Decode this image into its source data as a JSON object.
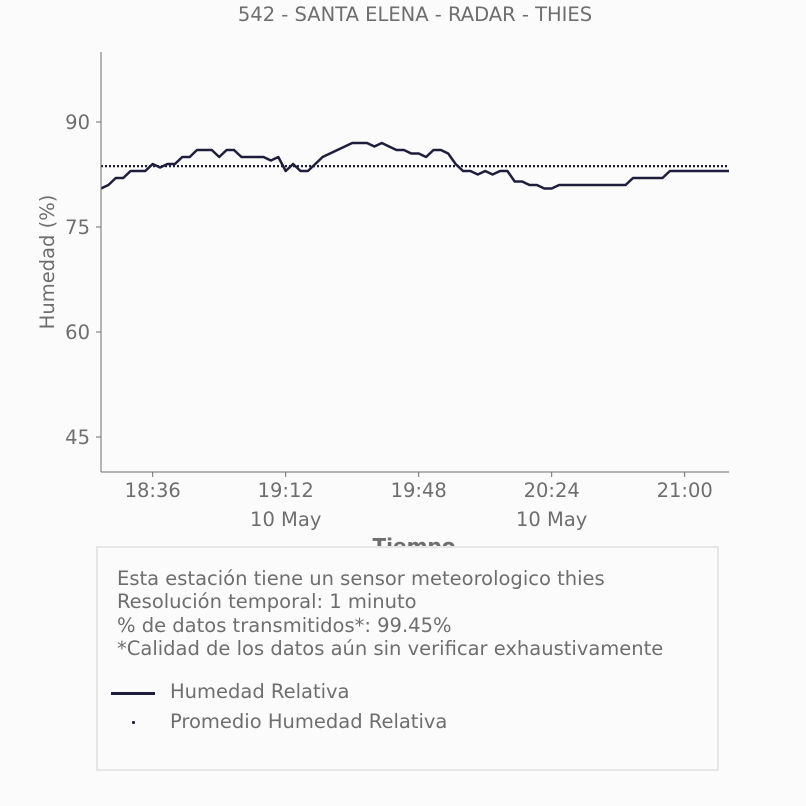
{
  "chart_data": {
    "type": "line",
    "title": "542 - SANTA ELENA - RADAR - THIES",
    "xlabel": "Tiempo",
    "ylabel": "Humedad (%)",
    "ylim": [
      40,
      100
    ],
    "yticks": [
      45,
      60,
      75,
      90
    ],
    "xlim": [
      "18:22",
      "21:12"
    ],
    "xticks": [
      {
        "time": "18:36",
        "label": "18:36",
        "sublabel": ""
      },
      {
        "time": "19:12",
        "label": "19:12",
        "sublabel": "10 May"
      },
      {
        "time": "19:48",
        "label": "19:48",
        "sublabel": ""
      },
      {
        "time": "20:24",
        "label": "20:24",
        "sublabel": "10 May"
      },
      {
        "time": "21:00",
        "label": "21:00",
        "sublabel": ""
      }
    ],
    "grid": false,
    "series": [
      {
        "name": "Humedad Relativa",
        "style": "solid",
        "color": "#1e1e3c",
        "x": [
          "18:22",
          "18:24",
          "18:26",
          "18:28",
          "18:30",
          "18:32",
          "18:34",
          "18:36",
          "18:38",
          "18:40",
          "18:42",
          "18:44",
          "18:46",
          "18:48",
          "18:50",
          "18:52",
          "18:54",
          "18:56",
          "18:58",
          "19:00",
          "19:02",
          "19:04",
          "19:06",
          "19:08",
          "19:10",
          "19:12",
          "19:14",
          "19:16",
          "19:18",
          "19:20",
          "19:22",
          "19:24",
          "19:26",
          "19:28",
          "19:30",
          "19:32",
          "19:34",
          "19:36",
          "19:38",
          "19:40",
          "19:42",
          "19:44",
          "19:46",
          "19:48",
          "19:50",
          "19:52",
          "19:54",
          "19:56",
          "19:58",
          "20:00",
          "20:02",
          "20:04",
          "20:06",
          "20:08",
          "20:10",
          "20:12",
          "20:14",
          "20:16",
          "20:18",
          "20:20",
          "20:22",
          "20:24",
          "20:26",
          "20:28",
          "20:30",
          "20:32",
          "20:34",
          "20:36",
          "20:38",
          "20:40",
          "20:42",
          "20:44",
          "20:46",
          "20:48",
          "20:50",
          "20:52",
          "20:54",
          "20:56",
          "20:58",
          "21:00",
          "21:02",
          "21:04",
          "21:06",
          "21:08",
          "21:10",
          "21:12"
        ],
        "values": [
          80.5,
          81,
          82,
          82,
          83,
          83,
          83,
          84,
          83.5,
          84,
          84,
          85,
          85,
          86,
          86,
          86,
          85,
          86,
          86,
          85,
          85,
          85,
          85,
          84.5,
          85,
          83,
          84,
          83,
          83,
          84,
          85,
          85.5,
          86,
          86.5,
          87,
          87,
          87,
          86.5,
          87,
          86.5,
          86,
          86,
          85.5,
          85.5,
          85,
          86,
          86,
          85.5,
          84,
          83,
          83,
          82.5,
          83,
          82.5,
          83,
          83,
          81.5,
          81.5,
          81,
          81,
          80.5,
          80.5,
          81,
          81,
          81,
          81,
          81,
          81,
          81,
          81,
          81,
          81,
          82,
          82,
          82,
          82,
          82,
          83,
          83,
          83,
          83,
          83,
          83,
          83,
          83,
          83
        ]
      },
      {
        "name": "Promedio Humedad Relativa",
        "style": "dotted",
        "color": "#1e1e3c",
        "x": [
          "18:22",
          "21:12"
        ],
        "values": [
          83.7,
          83.7
        ]
      }
    ]
  },
  "info": {
    "lines": [
      "Esta estación tiene un sensor meteorologico thies",
      "Resolución temporal: 1 minuto",
      "% de datos transmitidos*: 99.45%",
      "*Calidad de los datos aún sin verificar exhaustivamente"
    ]
  },
  "legend": {
    "items": [
      {
        "label": "Humedad Relativa"
      },
      {
        "label": "Promedio Humedad Relativa"
      }
    ]
  },
  "colors": {
    "series": "#1e1e3c",
    "text": "#6e6e6e",
    "axis": "#6e6e6e",
    "box_border": "#e6e6e6",
    "background": "#fbfbfb"
  }
}
